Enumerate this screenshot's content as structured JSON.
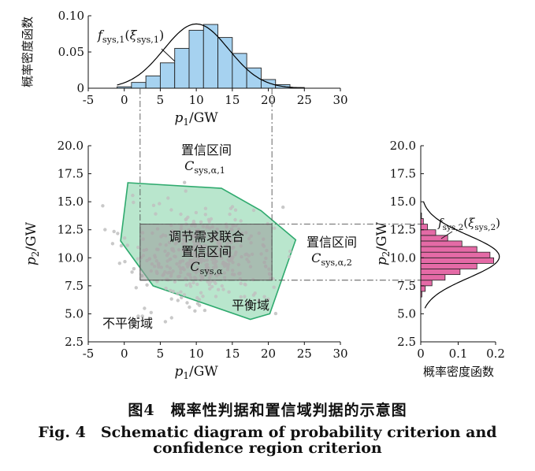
{
  "chart_data": [
    {
      "id": "top_hist",
      "type": "bar",
      "title": "",
      "xlabel": "p1/GW",
      "ylabel": "概率密度函数",
      "xlim": [
        -5,
        30
      ],
      "ylim": [
        0,
        0.1
      ],
      "xticks": [
        "-5",
        "0",
        "5",
        "10",
        "15",
        "20",
        "25",
        "30"
      ],
      "yticks": [
        "0",
        "0.05",
        "0.10"
      ],
      "bin_edges": [
        -1,
        1,
        3,
        5,
        7,
        9,
        11,
        13,
        15,
        17,
        19,
        21,
        23,
        25
      ],
      "values": [
        0.002,
        0.008,
        0.017,
        0.035,
        0.055,
        0.08,
        0.088,
        0.07,
        0.048,
        0.028,
        0.012,
        0.005,
        0.001
      ],
      "curve": {
        "type": "normal_pdf",
        "mean": 10,
        "std": 4.5,
        "label_main": "f",
        "label_sub": "sys,1",
        "label_arg": "ξ",
        "label_arg_sub": "sys,1"
      },
      "bar_color": "#a6d2f0",
      "curve_color": "#000000"
    },
    {
      "id": "main_scatter",
      "type": "scatter",
      "xlabel": "p1/GW",
      "ylabel": "p2/GW",
      "xlim": [
        -5,
        30
      ],
      "ylim": [
        2.5,
        20
      ],
      "xticks": [
        "-5",
        "0",
        "5",
        "10",
        "15",
        "20",
        "25",
        "30"
      ],
      "yticks": [
        "2.5",
        "5.0",
        "7.5",
        "10.0",
        "12.5",
        "15.0",
        "17.5",
        "20.0"
      ],
      "cloud": {
        "count": 420,
        "mean_x": 10,
        "mean_y": 10.3,
        "std_x": 5,
        "std_y": 2.2
      },
      "hull": [
        [
          0.5,
          16.7
        ],
        [
          13.5,
          16.2
        ],
        [
          19,
          14.2
        ],
        [
          23.8,
          11.6
        ],
        [
          20.2,
          5.0
        ],
        [
          17.5,
          4.5
        ],
        [
          4,
          7.5
        ],
        [
          -0.5,
          11.5
        ]
      ],
      "rect": {
        "x": [
          2.2,
          20.5
        ],
        "y": [
          8.0,
          13.0
        ]
      },
      "guides": {
        "x": [
          2.2,
          20.5
        ],
        "y": [
          8.0,
          13.0
        ]
      },
      "point_color": "#bfbfbf",
      "hull_color": "#2faa6e",
      "hull_fill": "#7fd1a4",
      "rect_fill": "#9a9a9a",
      "labels": {
        "conf1_cn": "置信区间",
        "conf1_sym": "C",
        "conf1_sub": "sys,α,1",
        "joint_cn1": "调节需求联合",
        "joint_cn2": "置信区间",
        "joint_sym": "C",
        "joint_sub": "sys,α",
        "conf2_cn": "置信区间",
        "conf2_sym": "C",
        "conf2_sub": "sys,α,2",
        "balance": "平衡域",
        "imbalance": "不平衡域"
      }
    },
    {
      "id": "right_hist",
      "type": "bar",
      "orientation": "horizontal",
      "xlabel": "概率密度函数",
      "ylabel": "p2/GW",
      "xlim": [
        0,
        0.2
      ],
      "ylim": [
        2.5,
        20
      ],
      "xticks": [
        "0",
        "0.1",
        "0.2"
      ],
      "yticks": [
        "2.5",
        "5.0",
        "7.5",
        "10.0",
        "12.5",
        "15.0",
        "17.5",
        "20.0"
      ],
      "bin_edges": [
        6.5,
        7.0,
        7.5,
        8.0,
        8.5,
        9.0,
        9.5,
        10.0,
        10.5,
        11.0,
        11.5,
        12.0,
        12.5,
        13.0,
        13.5,
        14.0
      ],
      "values": [
        0.003,
        0.012,
        0.03,
        0.065,
        0.105,
        0.15,
        0.195,
        0.185,
        0.15,
        0.11,
        0.072,
        0.04,
        0.018,
        0.007,
        0.002
      ],
      "curve": {
        "type": "normal_pdf",
        "mean": 10.1,
        "std": 1.9,
        "label_main": "f",
        "label_sub": "sys,2",
        "label_arg": "ξ",
        "label_arg_sub": "sys,2"
      },
      "bar_color": "#e46aa6",
      "curve_color": "#000000"
    }
  ],
  "caption": {
    "cn": "图4　概率性判据和置信域判据的示意图",
    "en_line1": "Fig. 4　Schematic diagram of probability criterion and",
    "en_line2": "confidence region criterion"
  }
}
